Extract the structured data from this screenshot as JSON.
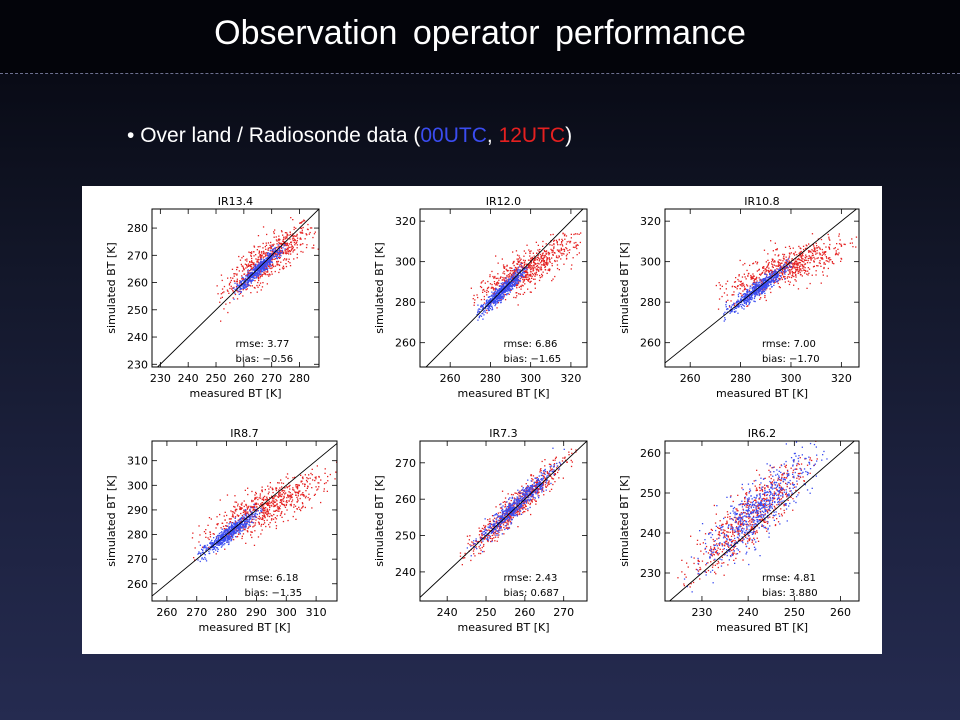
{
  "slide": {
    "title": "Observation operator performance",
    "bullet": {
      "bullet_char": "•",
      "prefix": "Over land / Radiosonde data (",
      "utc00": "00UTC",
      "separator": ", ",
      "utc12": "12UTC",
      "suffix": ")"
    }
  },
  "colors": {
    "utc00": "#3a4cf0",
    "utc12": "#e52020",
    "panel_bg": "#ffffff",
    "axis": "#000000"
  },
  "chart_data": [
    {
      "type": "scatter",
      "title": "IR13.4",
      "xlabel": "measured BT [K]",
      "ylabel": "simulated BT [K]",
      "xlim": [
        227,
        287
      ],
      "ylim": [
        229,
        287
      ],
      "xticks": [
        230,
        240,
        250,
        260,
        270,
        280
      ],
      "yticks": [
        230,
        240,
        250,
        260,
        270,
        280
      ],
      "diagonal": "y = x",
      "stats": {
        "rmse": "rmse: 3.77",
        "bias": "bias: −0.56"
      },
      "series": [
        {
          "name": "00UTC",
          "color": "#3a4cf0",
          "x_range": [
            255,
            275
          ],
          "slope": 0.95,
          "offset": 0,
          "x_spread": 4,
          "y_noise": 1.2,
          "count": 520
        },
        {
          "name": "12UTC",
          "color": "#e52020",
          "x_range": [
            250,
            287
          ],
          "slope": 0.72,
          "offset": 0,
          "x_spread": 8,
          "y_noise": 3.5,
          "count": 640
        }
      ]
    },
    {
      "type": "scatter",
      "title": "IR12.0",
      "xlabel": "measured BT [K]",
      "ylabel": "simulated BT [K]",
      "xlim": [
        245,
        328
      ],
      "ylim": [
        248,
        326
      ],
      "xticks": [
        260,
        280,
        300,
        320
      ],
      "yticks": [
        260,
        280,
        300,
        320
      ],
      "diagonal": "y = x",
      "stats": {
        "rmse": "rmse: 6.86",
        "bias": "bias: −1.65"
      },
      "series": [
        {
          "name": "00UTC",
          "color": "#3a4cf0",
          "x_range": [
            273,
            298
          ],
          "slope": 0.92,
          "offset": 0,
          "x_spread": 6,
          "y_noise": 1.8,
          "count": 560
        },
        {
          "name": "12UTC",
          "color": "#e52020",
          "x_range": [
            270,
            325
          ],
          "slope": 0.52,
          "offset": -1.5,
          "x_spread": 12,
          "y_noise": 4.5,
          "count": 680
        }
      ]
    },
    {
      "type": "scatter",
      "title": "IR10.8",
      "xlabel": "measured BT [K]",
      "ylabel": "simulated BT [K]",
      "xlim": [
        250,
        327
      ],
      "ylim": [
        248,
        326
      ],
      "xticks": [
        260,
        280,
        300,
        320
      ],
      "yticks": [
        260,
        280,
        300,
        320
      ],
      "diagonal": "y = x",
      "stats": {
        "rmse": "rmse: 7.00",
        "bias": "bias: −1.70"
      },
      "series": [
        {
          "name": "00UTC",
          "color": "#3a4cf0",
          "x_range": [
            273,
            300
          ],
          "slope": 0.92,
          "offset": 0,
          "x_spread": 6,
          "y_noise": 1.8,
          "count": 560
        },
        {
          "name": "12UTC",
          "color": "#e52020",
          "x_range": [
            270,
            327
          ],
          "slope": 0.5,
          "offset": -1.5,
          "x_spread": 12,
          "y_noise": 4.5,
          "count": 680
        }
      ]
    },
    {
      "type": "scatter",
      "title": "IR8.7",
      "xlabel": "measured BT [K]",
      "ylabel": "simulated BT [K]",
      "xlim": [
        255,
        317
      ],
      "ylim": [
        253,
        318
      ],
      "xticks": [
        260,
        270,
        280,
        290,
        300,
        310
      ],
      "yticks": [
        260,
        270,
        280,
        290,
        300,
        310
      ],
      "diagonal": "y = x",
      "stats": {
        "rmse": "rmse: 6.18",
        "bias": "bias: −1.35"
      },
      "series": [
        {
          "name": "00UTC",
          "color": "#3a4cf0",
          "x_range": [
            270,
            292
          ],
          "slope": 0.9,
          "offset": 0,
          "x_spread": 5,
          "y_noise": 1.6,
          "count": 560
        },
        {
          "name": "12UTC",
          "color": "#e52020",
          "x_range": [
            268,
            317
          ],
          "slope": 0.55,
          "offset": -1.5,
          "x_spread": 10,
          "y_noise": 4.0,
          "count": 680
        }
      ]
    },
    {
      "type": "scatter",
      "title": "IR7.3",
      "xlabel": "measured BT [K]",
      "ylabel": "simulated BT [K]",
      "xlim": [
        233,
        276
      ],
      "ylim": [
        232,
        276
      ],
      "xticks": [
        240,
        250,
        260,
        270
      ],
      "yticks": [
        240,
        250,
        260,
        270
      ],
      "diagonal": "y = x",
      "stats": {
        "rmse": "rmse: 2.43",
        "bias": "bias: 0.687"
      },
      "series": [
        {
          "name": "00UTC",
          "color": "#3a4cf0",
          "x_range": [
            245,
            270
          ],
          "slope": 1.0,
          "offset": 0.7,
          "x_spread": 5,
          "y_noise": 1.5,
          "count": 560
        },
        {
          "name": "12UTC",
          "color": "#e52020",
          "x_range": [
            242,
            273
          ],
          "slope": 1.0,
          "offset": 0.7,
          "x_spread": 6,
          "y_noise": 2.0,
          "count": 620
        }
      ]
    },
    {
      "type": "scatter",
      "title": "IR6.2",
      "xlabel": "measured BT [K]",
      "ylabel": "simulated BT [K]",
      "xlim": [
        222,
        264
      ],
      "ylim": [
        223,
        263
      ],
      "xticks": [
        230,
        240,
        250,
        260
      ],
      "yticks": [
        230,
        240,
        250,
        260
      ],
      "diagonal": "y = x",
      "stats": {
        "rmse": "rmse: 4.81",
        "bias": "bias: 3.880"
      },
      "series": [
        {
          "name": "00UTC",
          "color": "#3a4cf0",
          "x_range": [
            226,
            258
          ],
          "slope": 1.0,
          "offset": 3.9,
          "x_spread": 6,
          "y_noise": 3.5,
          "count": 620
        },
        {
          "name": "12UTC",
          "color": "#e52020",
          "x_range": [
            224,
            256
          ],
          "slope": 1.0,
          "offset": 3.9,
          "x_spread": 6,
          "y_noise": 3.5,
          "count": 620
        }
      ]
    }
  ]
}
